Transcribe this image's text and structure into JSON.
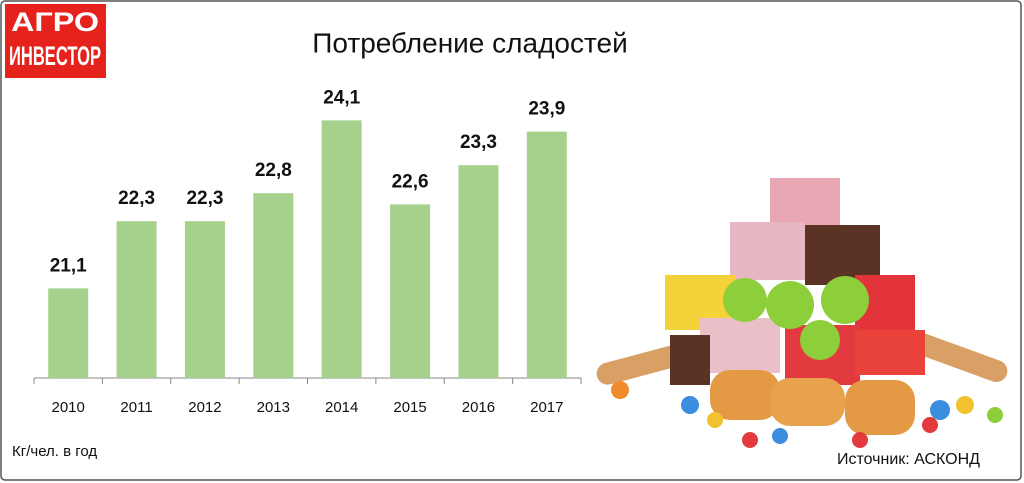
{
  "logo": {
    "line1": "АГРО",
    "line2": "ИНВЕСТОР"
  },
  "chart_data": {
    "type": "bar",
    "title": "Потребление сладостей",
    "categories": [
      "2010",
      "2011",
      "2012",
      "2013",
      "2014",
      "2015",
      "2016",
      "2017"
    ],
    "values": [
      21.1,
      22.3,
      22.3,
      22.8,
      24.1,
      22.6,
      23.3,
      23.9
    ],
    "value_labels": [
      "21,1",
      "22,3",
      "22,3",
      "22,8",
      "24,1",
      "22,6",
      "23,3",
      "23,9"
    ],
    "color": "#a6d18c",
    "ylim": [
      19.5,
      24.5
    ],
    "unit_label": "Кг/чел. в год",
    "source": "Источник: АСКОНД"
  }
}
